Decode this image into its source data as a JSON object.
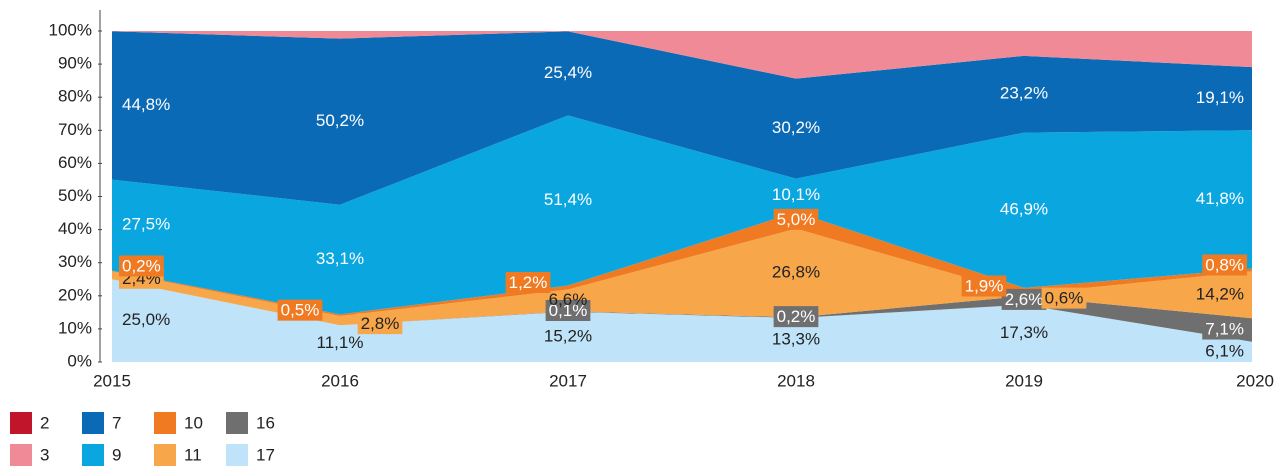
{
  "chart_data": {
    "type": "stacked_area",
    "categories": [
      "2015",
      "2016",
      "2017",
      "2018",
      "2019",
      "2020"
    ],
    "ylim": [
      0,
      100
    ],
    "yticks": [
      {
        "value": 0,
        "label": "0%"
      },
      {
        "value": 10,
        "label": "10%"
      },
      {
        "value": 20,
        "label": "20%"
      },
      {
        "value": 30,
        "label": "30%"
      },
      {
        "value": 40,
        "label": "40%"
      },
      {
        "value": 50,
        "label": "50%"
      },
      {
        "value": 60,
        "label": "60%"
      },
      {
        "value": 70,
        "label": "70%"
      },
      {
        "value": 80,
        "label": "80%"
      },
      {
        "value": 90,
        "label": "90%"
      },
      {
        "value": 100,
        "label": "100%"
      }
    ],
    "series": [
      {
        "name": "2",
        "color": "#c0152a",
        "values": [
          0,
          0,
          0,
          0,
          0,
          0
        ]
      },
      {
        "name": "3",
        "color": "#f08a96",
        "values": [
          0.1,
          2.3,
          0.1,
          14.4,
          7.5,
          10.9
        ]
      },
      {
        "name": "7",
        "color": "#0a6ab6",
        "values": [
          44.8,
          50.2,
          25.4,
          30.2,
          23.2,
          19.1
        ],
        "value_labels": [
          "44,8%",
          "50,2%",
          "25,4%",
          "30,2%",
          "23,2%",
          "19,1%"
        ]
      },
      {
        "name": "9",
        "color": "#0aa6e0",
        "values": [
          27.5,
          33.1,
          51.4,
          10.1,
          46.9,
          41.8
        ],
        "value_labels": [
          "27,5%",
          "33,1%",
          "51,4%",
          "10,1%",
          "46,9%",
          "41,8%"
        ]
      },
      {
        "name": "10",
        "color": "#f07a22",
        "values": [
          0.2,
          0.5,
          1.2,
          5.0,
          1.9,
          0.8
        ],
        "value_labels": [
          "0,2%",
          "0,5%",
          "1,2%",
          "5,0%",
          "1,9%",
          "0,8%"
        ]
      },
      {
        "name": "11",
        "color": "#f7a64a",
        "values": [
          2.4,
          2.8,
          6.6,
          26.8,
          0.6,
          14.2
        ],
        "value_labels": [
          "2,4%",
          "2,8%",
          "6,6%",
          "26,8%",
          "0,6%",
          "14,2%"
        ]
      },
      {
        "name": "16",
        "color": "#6f6f6f",
        "values": [
          0,
          0,
          0.1,
          0.2,
          2.6,
          7.1
        ],
        "value_labels": [
          null,
          null,
          "0,1%",
          "0,2%",
          "2,6%",
          "7,1%"
        ]
      },
      {
        "name": "17",
        "color": "#bfe3f8",
        "values": [
          25.0,
          11.1,
          15.2,
          13.3,
          17.3,
          6.1
        ],
        "value_labels": [
          "25,0%",
          "11,1%",
          "15,2%",
          "13,3%",
          "17,3%",
          "6,1%"
        ]
      }
    ]
  }
}
